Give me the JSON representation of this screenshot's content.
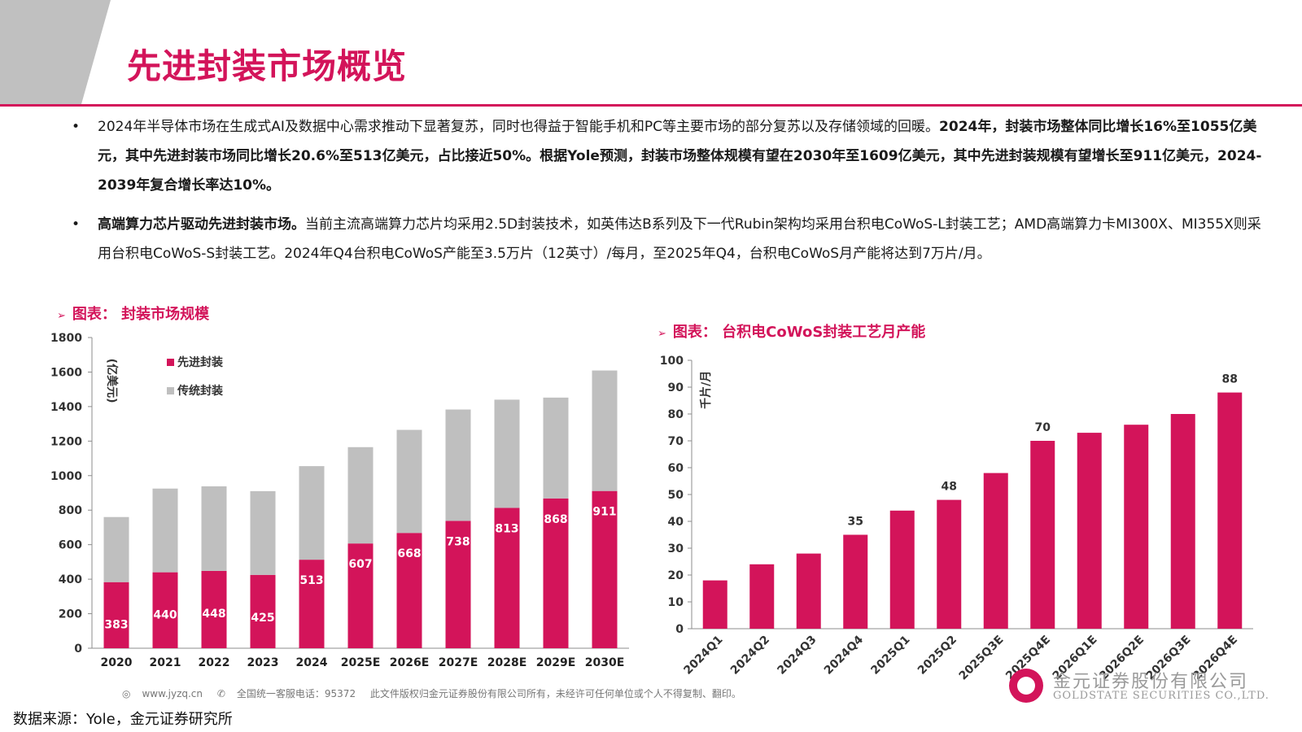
{
  "page": {
    "title": "先进封装市场概览",
    "bullets": [
      {
        "bullet": "•",
        "normal": "2024年半导体市场在生成式AI及数据中心需求推动下显著复苏，同时也得益于智能手机和PC等主要市场的部分复苏以及存储领域的回暖。",
        "bold": "2024年，封装市场整体同比增长16%至1055亿美元，其中先进封装市场同比增长20.6%至513亿美元，占比接近50%。根据Yole预测，封装市场整体规模有望在2030年至1609亿美元，其中先进封装规模有望增长至911亿美元，2024-2039年复合增长率达10%。"
      },
      {
        "bullet": "•",
        "bold": "高端算力芯片驱动先进封装市场。",
        "normal": "当前主流高端算力芯片均采用2.5D封装技术，如英伟达B系列及下一代Rubin架构均采用台积电CoWoS-L封装工艺；AMD高端算力卡MI300X、MI355X则采用台积电CoWoS-S封装工艺。2024年Q4台积电CoWoS产能至3.5万片（12英寸）/每月，至2025年Q4，台积电CoWoS月产能将达到7万片/月。"
      }
    ],
    "footer": {
      "website": "www.jyzq.cn",
      "hotline": "全国统一客服电话：95372",
      "copyright": "此文件版权归金元证券股份有限公司所有，未经许可任何单位或个人不得复制、翻印。"
    },
    "source": "数据来源：Yole，金元证券研究所",
    "logo": {
      "name_cn": "金元证券股份有限公司",
      "name_en": "GOLDSTATE SECURITIES CO.,LTD."
    },
    "colors": {
      "accent": "#d3145a",
      "gray_bar": "#bfbfbf"
    }
  },
  "chart_data": [
    {
      "type": "bar",
      "stacked": true,
      "title": "图表：  封装市场规模",
      "marker": "➢",
      "ylabel": "(亿美元)",
      "categories": [
        "2020",
        "2021",
        "2022",
        "2023",
        "2024",
        "2025E",
        "2026E",
        "2027E",
        "2028E",
        "2029E",
        "2030E"
      ],
      "series": [
        {
          "name": "先进封装",
          "color": "#d3145a",
          "values": [
            383,
            440,
            448,
            425,
            513,
            607,
            668,
            738,
            813,
            868,
            911
          ]
        },
        {
          "name": "传统封装",
          "color": "#bfbfbf",
          "values": [
            377,
            485,
            490,
            485,
            542,
            558,
            597,
            645,
            627,
            584,
            698
          ]
        }
      ],
      "yticks": [
        "0",
        "200",
        "400",
        "600",
        "800",
        "1000",
        "1200",
        "1400",
        "1600",
        "1800"
      ],
      "ylim": [
        0,
        1800
      ],
      "legend": "top-left"
    },
    {
      "type": "bar",
      "title": "图表：  台积电CoWoS封装工艺月产能",
      "marker": "➢",
      "ylabel": "千片/月",
      "categories": [
        "2024Q1",
        "2024Q2",
        "2024Q3",
        "2024Q4",
        "2025Q1",
        "2025Q2",
        "2025Q3E",
        "2025Q4E",
        "2026Q1E",
        "2026Q2E",
        "2026Q3E",
        "2026Q4E"
      ],
      "values": [
        18,
        24,
        28,
        35,
        44,
        48,
        58,
        70,
        73,
        76,
        80,
        88
      ],
      "labeled": [
        "",
        "",
        "",
        "35",
        "",
        "48",
        "",
        "70",
        "",
        "",
        "",
        "88"
      ],
      "yticks": [
        "0",
        "10",
        "20",
        "30",
        "40",
        "50",
        "60",
        "70",
        "80",
        "90",
        "100"
      ],
      "ylim": [
        0,
        100
      ],
      "color": "#d3145a"
    }
  ]
}
